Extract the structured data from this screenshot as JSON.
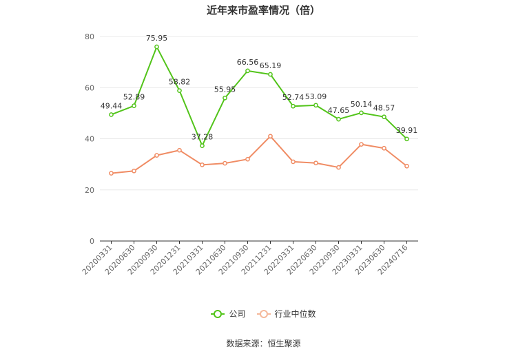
{
  "title": "近年来市盈率情况（倍）",
  "source": "数据来源：恒生聚源",
  "chart_data": {
    "type": "line",
    "title": "近年来市盈率情况（倍）",
    "categories": [
      "20200331",
      "20200630",
      "20200930",
      "20201231",
      "20210331",
      "20210630",
      "20210930",
      "20211231",
      "20220331",
      "20220630",
      "20220930",
      "20230331",
      "20230630",
      "20240716"
    ],
    "ylim": [
      0,
      80
    ],
    "yticks": [
      0,
      20,
      40,
      60,
      80
    ],
    "grid": true,
    "legend_position": "bottom",
    "series": [
      {
        "name": "公司",
        "color": "#52c41a",
        "values": [
          49.44,
          52.89,
          75.95,
          58.82,
          37.28,
          55.95,
          66.56,
          65.19,
          52.74,
          53.09,
          47.65,
          50.14,
          48.57,
          39.91
        ],
        "labels": [
          "49.44",
          "52.89",
          "75.95",
          "58.82",
          "37.28",
          "55.95",
          "66.56",
          "65.19",
          "52.74",
          "53.09",
          "47.65",
          "50.14",
          "48.57",
          "39.91"
        ]
      },
      {
        "name": "行业中位数",
        "color": "#f08c64",
        "values": [
          26.5,
          27.4,
          33.5,
          35.5,
          29.8,
          30.4,
          32.0,
          41.0,
          31.0,
          30.5,
          28.8,
          37.8,
          36.3,
          29.3
        ]
      }
    ]
  }
}
